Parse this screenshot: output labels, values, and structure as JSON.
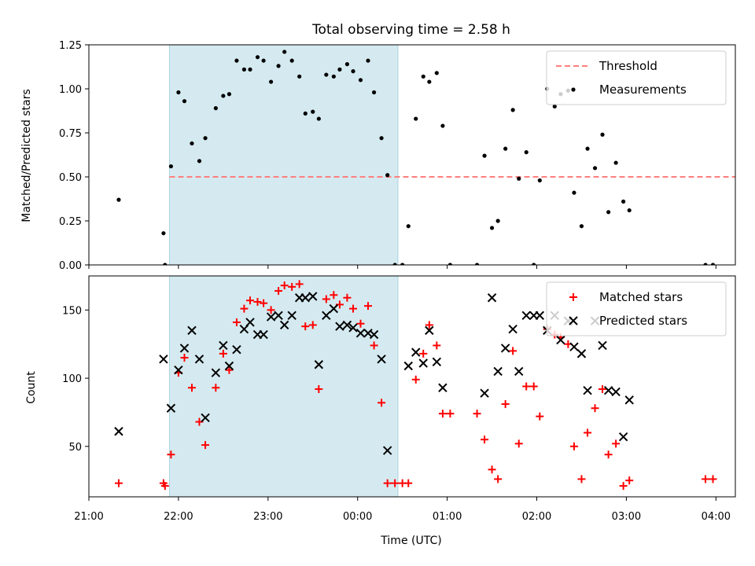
{
  "chart_data": [
    {
      "type": "scatter",
      "title": "Total observing time = 2.58 h",
      "ylabel": "Matched/Predicted stars",
      "xlabel": "",
      "xlim": [
        "20:40",
        "03:53"
      ],
      "ylim": [
        0,
        1.25
      ],
      "yticks": [
        0.0,
        0.25,
        0.5,
        0.75,
        1.0,
        1.25
      ],
      "ytick_labels": [
        "0.00",
        "0.25",
        "0.50",
        "0.75",
        "1.00",
        "1.25"
      ],
      "shaded_span": [
        "21:34",
        "00:07"
      ],
      "shade_color": "#d4eaf0",
      "grid": false,
      "legend_position": "top-right",
      "threshold": {
        "name": "Threshold",
        "value": 0.5,
        "x_range": [
          "21:34",
          "03:53"
        ],
        "color": "#ff7f7f"
      },
      "series": [
        {
          "name": "Measurements",
          "color": "#000000",
          "points": [
            [
              "21:00",
              0.37
            ],
            [
              "21:30",
              0.18
            ],
            [
              "21:31",
              0.0
            ],
            [
              "21:35",
              0.56
            ],
            [
              "21:40",
              0.98
            ],
            [
              "21:44",
              0.93
            ],
            [
              "21:49",
              0.69
            ],
            [
              "21:54",
              0.59
            ],
            [
              "21:58",
              0.72
            ],
            [
              "22:05",
              0.89
            ],
            [
              "22:10",
              0.96
            ],
            [
              "22:14",
              0.97
            ],
            [
              "22:19",
              1.16
            ],
            [
              "22:24",
              1.11
            ],
            [
              "22:28",
              1.11
            ],
            [
              "22:33",
              1.18
            ],
            [
              "22:37",
              1.16
            ],
            [
              "22:42",
              1.04
            ],
            [
              "22:47",
              1.13
            ],
            [
              "22:51",
              1.21
            ],
            [
              "22:56",
              1.16
            ],
            [
              "23:01",
              1.07
            ],
            [
              "23:05",
              0.86
            ],
            [
              "23:10",
              0.87
            ],
            [
              "23:14",
              0.83
            ],
            [
              "23:19",
              1.08
            ],
            [
              "23:24",
              1.07
            ],
            [
              "23:28",
              1.11
            ],
            [
              "23:33",
              1.14
            ],
            [
              "23:37",
              1.1
            ],
            [
              "23:42",
              1.05
            ],
            [
              "23:47",
              1.16
            ],
            [
              "23:51",
              0.98
            ],
            [
              "23:56",
              0.72
            ],
            [
              "00:00",
              0.51
            ],
            [
              "00:05",
              0.0
            ],
            [
              "00:10",
              0.0
            ],
            [
              "00:14",
              0.22
            ],
            [
              "00:19",
              0.83
            ],
            [
              "00:24",
              1.07
            ],
            [
              "00:28",
              1.04
            ],
            [
              "00:33",
              1.09
            ],
            [
              "00:37",
              0.79
            ],
            [
              "00:42",
              0.0
            ],
            [
              "01:00",
              0.0
            ],
            [
              "01:05",
              0.62
            ],
            [
              "01:10",
              0.21
            ],
            [
              "01:14",
              0.25
            ],
            [
              "01:19",
              0.66
            ],
            [
              "01:24",
              0.88
            ],
            [
              "01:28",
              0.49
            ],
            [
              "01:33",
              0.64
            ],
            [
              "01:38",
              0.0
            ],
            [
              "01:42",
              0.48
            ],
            [
              "01:47",
              1.0
            ],
            [
              "01:52",
              0.9
            ],
            [
              "01:56",
              0.97
            ],
            [
              "02:01",
              0.99
            ],
            [
              "02:05",
              0.41
            ],
            [
              "02:10",
              0.22
            ],
            [
              "02:14",
              0.66
            ],
            [
              "02:19",
              0.55
            ],
            [
              "02:24",
              0.74
            ],
            [
              "02:28",
              0.3
            ],
            [
              "02:33",
              0.58
            ],
            [
              "02:38",
              0.36
            ],
            [
              "02:42",
              0.31
            ],
            [
              "03:33",
              0.0
            ],
            [
              "03:38",
              0.0
            ]
          ]
        }
      ]
    },
    {
      "type": "scatter",
      "title": "",
      "xlabel": "Time (UTC)",
      "ylabel": "Count",
      "xlim": [
        "20:40",
        "03:53"
      ],
      "ylim": [
        13,
        175
      ],
      "yticks": [
        50,
        100,
        150
      ],
      "ytick_labels": [
        "50",
        "100",
        "150"
      ],
      "xticks": [
        "20:40",
        "21:40",
        "22:40",
        "23:40",
        "00:40",
        "01:40",
        "02:40",
        "03:40"
      ],
      "xtick_labels": [
        "21:00",
        "22:00",
        "23:00",
        "00:00",
        "01:00",
        "02:00",
        "03:00",
        "04:00"
      ],
      "shaded_span": [
        "21:34",
        "00:07"
      ],
      "grid": false,
      "legend_position": "top-right",
      "series": [
        {
          "name": "Matched stars",
          "color": "#ff0000",
          "marker": "plus",
          "points": [
            [
              "21:00",
              23
            ],
            [
              "21:30",
              23
            ],
            [
              "21:31",
              21
            ],
            [
              "21:35",
              44
            ],
            [
              "21:40",
              104
            ],
            [
              "21:44",
              115
            ],
            [
              "21:49",
              93
            ],
            [
              "21:54",
              68
            ],
            [
              "21:58",
              51
            ],
            [
              "22:05",
              93
            ],
            [
              "22:10",
              118
            ],
            [
              "22:14",
              106
            ],
            [
              "22:19",
              141
            ],
            [
              "22:24",
              151
            ],
            [
              "22:28",
              157
            ],
            [
              "22:33",
              156
            ],
            [
              "22:37",
              155
            ],
            [
              "22:42",
              150
            ],
            [
              "22:47",
              164
            ],
            [
              "22:51",
              168
            ],
            [
              "22:56",
              167
            ],
            [
              "23:01",
              169
            ],
            [
              "23:05",
              138
            ],
            [
              "23:10",
              139
            ],
            [
              "23:14",
              92
            ],
            [
              "23:19",
              158
            ],
            [
              "23:24",
              161
            ],
            [
              "23:28",
              154
            ],
            [
              "23:33",
              159
            ],
            [
              "23:37",
              151
            ],
            [
              "23:42",
              140
            ],
            [
              "23:47",
              153
            ],
            [
              "23:51",
              124
            ],
            [
              "23:56",
              82
            ],
            [
              "00:00",
              23
            ],
            [
              "00:05",
              23
            ],
            [
              "00:10",
              23
            ],
            [
              "00:14",
              23
            ],
            [
              "00:19",
              99
            ],
            [
              "00:24",
              118
            ],
            [
              "00:28",
              139
            ],
            [
              "00:33",
              124
            ],
            [
              "00:37",
              74
            ],
            [
              "00:42",
              74
            ],
            [
              "01:00",
              74
            ],
            [
              "01:05",
              55
            ],
            [
              "01:10",
              33
            ],
            [
              "01:14",
              26
            ],
            [
              "01:19",
              81
            ],
            [
              "01:24",
              120
            ],
            [
              "01:28",
              52
            ],
            [
              "01:33",
              94
            ],
            [
              "01:38",
              94
            ],
            [
              "01:42",
              72
            ],
            [
              "01:47",
              136
            ],
            [
              "01:52",
              132
            ],
            [
              "01:56",
              130
            ],
            [
              "02:01",
              125
            ],
            [
              "02:05",
              50
            ],
            [
              "02:10",
              26
            ],
            [
              "02:14",
              60
            ],
            [
              "02:19",
              78
            ],
            [
              "02:24",
              92
            ],
            [
              "02:28",
              44
            ],
            [
              "02:33",
              52
            ],
            [
              "02:38",
              21
            ],
            [
              "02:42",
              25
            ],
            [
              "03:33",
              26
            ],
            [
              "03:38",
              26
            ]
          ]
        },
        {
          "name": "Predicted stars",
          "color": "#000000",
          "marker": "x",
          "points": [
            [
              "21:00",
              61
            ],
            [
              "21:30",
              114
            ],
            [
              "21:35",
              78
            ],
            [
              "21:40",
              106
            ],
            [
              "21:44",
              122
            ],
            [
              "21:49",
              135
            ],
            [
              "21:54",
              114
            ],
            [
              "21:58",
              71
            ],
            [
              "22:05",
              104
            ],
            [
              "22:10",
              124
            ],
            [
              "22:14",
              109
            ],
            [
              "22:19",
              121
            ],
            [
              "22:24",
              136
            ],
            [
              "22:28",
              141
            ],
            [
              "22:33",
              132
            ],
            [
              "22:37",
              132
            ],
            [
              "22:42",
              145
            ],
            [
              "22:47",
              146
            ],
            [
              "22:51",
              139
            ],
            [
              "22:56",
              146
            ],
            [
              "23:01",
              159
            ],
            [
              "23:05",
              159
            ],
            [
              "23:10",
              160
            ],
            [
              "23:14",
              110
            ],
            [
              "23:19",
              146
            ],
            [
              "23:24",
              151
            ],
            [
              "23:28",
              138
            ],
            [
              "23:33",
              139
            ],
            [
              "23:37",
              137
            ],
            [
              "23:42",
              133
            ],
            [
              "23:47",
              133
            ],
            [
              "23:51",
              132
            ],
            [
              "23:56",
              114
            ],
            [
              "00:00",
              47
            ],
            [
              "00:14",
              109
            ],
            [
              "00:19",
              119
            ],
            [
              "00:24",
              111
            ],
            [
              "00:28",
              135
            ],
            [
              "00:33",
              112
            ],
            [
              "00:37",
              93
            ],
            [
              "01:05",
              89
            ],
            [
              "01:10",
              159
            ],
            [
              "01:14",
              105
            ],
            [
              "01:19",
              122
            ],
            [
              "01:24",
              136
            ],
            [
              "01:28",
              105
            ],
            [
              "01:33",
              146
            ],
            [
              "01:38",
              146
            ],
            [
              "01:42",
              146
            ],
            [
              "01:47",
              135
            ],
            [
              "01:52",
              146
            ],
            [
              "01:56",
              128
            ],
            [
              "02:01",
              142
            ],
            [
              "02:05",
              123
            ],
            [
              "02:10",
              118
            ],
            [
              "02:14",
              91
            ],
            [
              "02:19",
              142
            ],
            [
              "02:24",
              124
            ],
            [
              "02:28",
              91
            ],
            [
              "02:33",
              90
            ],
            [
              "02:38",
              57
            ],
            [
              "02:42",
              84
            ]
          ]
        }
      ]
    }
  ]
}
